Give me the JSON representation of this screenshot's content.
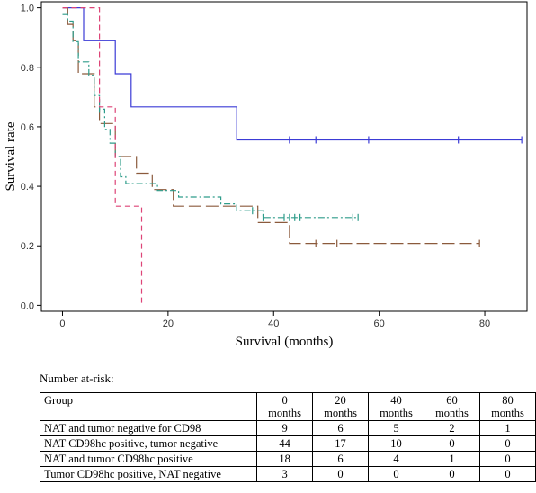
{
  "chart_data": {
    "type": "line",
    "subtype": "kaplan-meier step",
    "xlabel": "Survival (months)",
    "ylabel": "Survival rate",
    "xlim": [
      -4,
      88
    ],
    "ylim": [
      -0.02,
      1.02
    ],
    "xticks": [
      0,
      20,
      40,
      60,
      80
    ],
    "yticks": [
      0.0,
      0.2,
      0.4,
      0.6,
      0.8,
      1.0
    ],
    "yticklabels": [
      "0.0",
      "0.2",
      "0.4",
      "0.6",
      "0.8",
      "1.0"
    ],
    "grid": false,
    "legend": "none",
    "series": [
      {
        "color": "#3b3bd6",
        "dash": "solid",
        "points": [
          [
            0,
            1.0
          ],
          [
            4,
            1.0
          ],
          [
            4,
            0.889
          ],
          [
            10,
            0.889
          ],
          [
            10,
            0.778
          ],
          [
            13,
            0.778
          ],
          [
            13,
            0.667
          ],
          [
            33,
            0.667
          ],
          [
            33,
            0.556
          ],
          [
            87,
            0.556
          ]
        ],
        "censor": [
          43,
          48,
          58,
          75,
          87
        ]
      },
      {
        "color": "#8b5a3c",
        "dash": "long-dash",
        "points": [
          [
            0,
            1.0
          ],
          [
            1,
            1.0
          ],
          [
            1,
            0.944
          ],
          [
            2,
            0.944
          ],
          [
            2,
            0.889
          ],
          [
            3,
            0.889
          ],
          [
            3,
            0.778
          ],
          [
            6,
            0.778
          ],
          [
            6,
            0.667
          ],
          [
            7,
            0.667
          ],
          [
            7,
            0.611
          ],
          [
            10,
            0.611
          ],
          [
            10,
            0.5
          ],
          [
            14,
            0.5
          ],
          [
            14,
            0.444
          ],
          [
            17,
            0.444
          ],
          [
            17,
            0.389
          ],
          [
            21,
            0.389
          ],
          [
            21,
            0.333
          ],
          [
            37,
            0.333
          ],
          [
            37,
            0.278
          ],
          [
            43,
            0.278
          ],
          [
            43,
            0.208
          ],
          [
            79,
            0.208
          ]
        ],
        "censor": [
          48,
          52,
          79
        ]
      },
      {
        "color": "#2e9c8a",
        "dash": "dash-dot",
        "points": [
          [
            0,
            0.977
          ],
          [
            1,
            0.977
          ],
          [
            1,
            0.955
          ],
          [
            2,
            0.955
          ],
          [
            2,
            0.886
          ],
          [
            3,
            0.886
          ],
          [
            3,
            0.818
          ],
          [
            5,
            0.818
          ],
          [
            5,
            0.773
          ],
          [
            6,
            0.773
          ],
          [
            6,
            0.705
          ],
          [
            7,
            0.705
          ],
          [
            7,
            0.659
          ],
          [
            8,
            0.659
          ],
          [
            8,
            0.591
          ],
          [
            9,
            0.591
          ],
          [
            9,
            0.545
          ],
          [
            10,
            0.545
          ],
          [
            10,
            0.5
          ],
          [
            11,
            0.5
          ],
          [
            11,
            0.432
          ],
          [
            12,
            0.432
          ],
          [
            12,
            0.409
          ],
          [
            18,
            0.409
          ],
          [
            18,
            0.386
          ],
          [
            22,
            0.386
          ],
          [
            22,
            0.364
          ],
          [
            30,
            0.364
          ],
          [
            30,
            0.341
          ],
          [
            33,
            0.341
          ],
          [
            33,
            0.318
          ],
          [
            38,
            0.318
          ],
          [
            38,
            0.295
          ],
          [
            56,
            0.295
          ]
        ],
        "censor": [
          7,
          36,
          38,
          42,
          43,
          44,
          45,
          55,
          56
        ]
      },
      {
        "color": "#dd4477",
        "dash": "dash",
        "points": [
          [
            0,
            1.0
          ],
          [
            7,
            1.0
          ],
          [
            7,
            0.667
          ],
          [
            10,
            0.667
          ],
          [
            10,
            0.333
          ],
          [
            15,
            0.333
          ],
          [
            15,
            0.0
          ]
        ],
        "censor": []
      }
    ],
    "risk_table": {
      "title": "Number at-risk:",
      "header_group": "Group",
      "time_points": [
        "0",
        "20",
        "40",
        "60",
        "80"
      ],
      "time_unit": "months",
      "rows": [
        {
          "group": "NAT and tumor negative for CD98",
          "counts": [
            "9",
            "6",
            "5",
            "2",
            "1"
          ]
        },
        {
          "group": "NAT CD98hc positive, tumor negative",
          "counts": [
            "44",
            "17",
            "10",
            "0",
            "0"
          ]
        },
        {
          "group": "NAT and tumor CD98hc positive",
          "counts": [
            "18",
            "6",
            "4",
            "1",
            "0"
          ]
        },
        {
          "group": "Tumor CD98hc positive, NAT negative",
          "counts": [
            "3",
            "0",
            "0",
            "0",
            "0"
          ]
        }
      ]
    }
  }
}
